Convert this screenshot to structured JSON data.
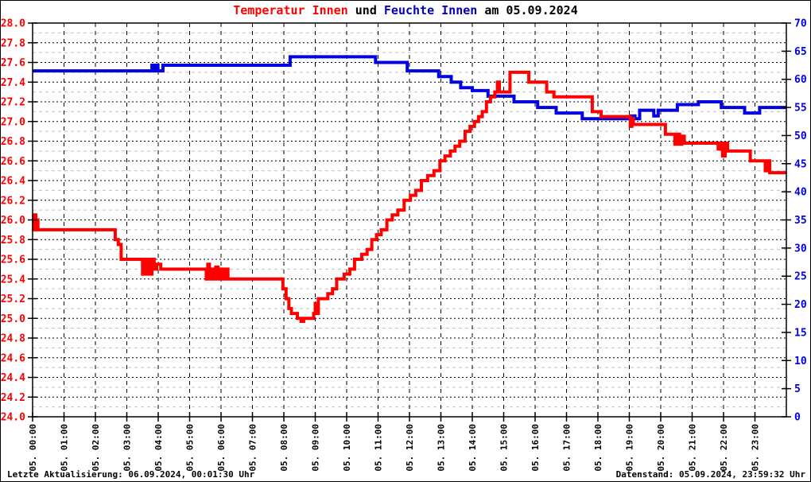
{
  "title": {
    "temperature_part": "Temperatur Innen",
    "conjunction": " und ",
    "humidity_part": "Feuchte Innen",
    "date_part": " am 05.09.2024"
  },
  "footer": {
    "last_update": "Letzte Aktualisierung: 06.09.2024, 00:01:30 Uhr",
    "data_timestamp": "Datenstand: 05.09.2024, 23:59:32 Uhr"
  },
  "colors": {
    "temperature": "#ff0000",
    "humidity": "#0000e0",
    "humidity_title": "#0000b4",
    "grid_major": "#000000",
    "grid_minor": "#c0c0c0",
    "axis_frame": "#000000",
    "background": "#ffffff"
  },
  "chart_data": {
    "type": "line",
    "title": "Temperatur Innen und Feuchte Innen am 05.09.2024",
    "grid": "on",
    "legend": "none",
    "x_labels": [
      "05. 00:00",
      "05. 01:00",
      "05. 02:00",
      "05. 03:00",
      "05. 04:00",
      "05. 05:00",
      "05. 06:00",
      "05. 07:00",
      "05. 08:00",
      "05. 09:00",
      "05. 10:00",
      "05. 11:00",
      "05. 12:00",
      "05. 13:00",
      "05. 14:00",
      "05. 15:00",
      "05. 16:00",
      "05. 17:00",
      "05. 18:00",
      "05. 19:00",
      "05. 20:00",
      "05. 21:00",
      "05. 22:00",
      "05. 23:00"
    ],
    "x_range_hours": [
      0,
      24
    ],
    "y_left": {
      "min": 24.0,
      "max": 28.0,
      "major_step": 0.2,
      "minor_step": 0.1,
      "tick_labels": [
        "24.0",
        "24.2",
        "24.4",
        "24.6",
        "24.8",
        "25.0",
        "25.2",
        "25.4",
        "25.6",
        "25.8",
        "26.0",
        "26.2",
        "26.4",
        "26.6",
        "26.8",
        "27.0",
        "27.2",
        "27.4",
        "27.6",
        "27.8",
        "28.0"
      ]
    },
    "y_right": {
      "min": 0,
      "max": 70,
      "major_step": 5,
      "tick_labels": [
        "0",
        "5",
        "10",
        "15",
        "20",
        "25",
        "30",
        "35",
        "40",
        "45",
        "50",
        "55",
        "60",
        "65",
        "70"
      ]
    },
    "series": [
      {
        "name": "Feuchte Innen",
        "axis": "right",
        "mode": "step-after",
        "points": [
          [
            0.0,
            61.5
          ],
          [
            3.8,
            62.5
          ],
          [
            3.86,
            61.5
          ],
          [
            3.93,
            62.5
          ],
          [
            3.99,
            61.5
          ],
          [
            4.15,
            62.5
          ],
          [
            8.2,
            64
          ],
          [
            10.92,
            63
          ],
          [
            11.93,
            61.5
          ],
          [
            12.93,
            60.5
          ],
          [
            13.33,
            59.5
          ],
          [
            13.63,
            58.5
          ],
          [
            14.0,
            58
          ],
          [
            14.5,
            57
          ],
          [
            15.33,
            56
          ],
          [
            16.08,
            55
          ],
          [
            16.67,
            54
          ],
          [
            17.5,
            53
          ],
          [
            19.05,
            53.5
          ],
          [
            19.18,
            53
          ],
          [
            19.33,
            54.5
          ],
          [
            19.78,
            53.5
          ],
          [
            19.92,
            54.5
          ],
          [
            20.53,
            55.5
          ],
          [
            21.2,
            56
          ],
          [
            21.93,
            55
          ],
          [
            22.67,
            54
          ],
          [
            23.15,
            55
          ]
        ]
      },
      {
        "name": "Temperatur Innen",
        "axis": "left",
        "mode": "step-after",
        "points": [
          [
            0.0,
            26.05
          ],
          [
            0.03,
            25.9
          ],
          [
            0.06,
            26.05
          ],
          [
            0.1,
            25.9
          ],
          [
            0.13,
            26.0
          ],
          [
            0.17,
            25.9
          ],
          [
            2.63,
            25.8
          ],
          [
            2.73,
            25.75
          ],
          [
            2.82,
            25.6
          ],
          [
            3.5,
            25.45
          ],
          [
            3.56,
            25.6
          ],
          [
            3.62,
            25.45
          ],
          [
            3.68,
            25.6
          ],
          [
            3.74,
            25.45
          ],
          [
            3.8,
            25.6
          ],
          [
            3.87,
            25.5
          ],
          [
            3.95,
            25.55
          ],
          [
            4.08,
            25.5
          ],
          [
            5.53,
            25.4
          ],
          [
            5.58,
            25.55
          ],
          [
            5.63,
            25.4
          ],
          [
            5.7,
            25.5
          ],
          [
            5.76,
            25.4
          ],
          [
            5.83,
            25.52
          ],
          [
            5.9,
            25.4
          ],
          [
            5.97,
            25.5
          ],
          [
            6.05,
            25.4
          ],
          [
            6.13,
            25.5
          ],
          [
            6.22,
            25.4
          ],
          [
            7.97,
            25.3
          ],
          [
            8.07,
            25.2
          ],
          [
            8.16,
            25.1
          ],
          [
            8.24,
            25.05
          ],
          [
            8.43,
            25.0
          ],
          [
            8.55,
            24.97
          ],
          [
            8.63,
            25.0
          ],
          [
            8.95,
            25.05
          ],
          [
            9.0,
            25.15
          ],
          [
            9.05,
            25.05
          ],
          [
            9.1,
            25.2
          ],
          [
            9.4,
            25.25
          ],
          [
            9.55,
            25.3
          ],
          [
            9.68,
            25.4
          ],
          [
            9.92,
            25.45
          ],
          [
            10.1,
            25.5
          ],
          [
            10.25,
            25.6
          ],
          [
            10.48,
            25.65
          ],
          [
            10.65,
            25.7
          ],
          [
            10.8,
            25.8
          ],
          [
            10.95,
            25.85
          ],
          [
            11.1,
            25.9
          ],
          [
            11.28,
            26.0
          ],
          [
            11.45,
            26.05
          ],
          [
            11.63,
            26.1
          ],
          [
            11.83,
            26.2
          ],
          [
            12.03,
            26.25
          ],
          [
            12.2,
            26.3
          ],
          [
            12.38,
            26.4
          ],
          [
            12.58,
            26.45
          ],
          [
            12.78,
            26.5
          ],
          [
            12.97,
            26.6
          ],
          [
            13.13,
            26.65
          ],
          [
            13.3,
            26.7
          ],
          [
            13.45,
            26.75
          ],
          [
            13.6,
            26.8
          ],
          [
            13.77,
            26.9
          ],
          [
            13.93,
            26.95
          ],
          [
            14.07,
            27.0
          ],
          [
            14.2,
            27.05
          ],
          [
            14.32,
            27.1
          ],
          [
            14.45,
            27.2
          ],
          [
            14.58,
            27.25
          ],
          [
            14.72,
            27.3
          ],
          [
            14.8,
            27.4
          ],
          [
            14.86,
            27.3
          ],
          [
            15.2,
            27.5
          ],
          [
            15.8,
            27.4
          ],
          [
            16.37,
            27.3
          ],
          [
            16.6,
            27.25
          ],
          [
            17.82,
            27.1
          ],
          [
            18.1,
            27.05
          ],
          [
            19.03,
            26.95
          ],
          [
            19.08,
            27.03
          ],
          [
            19.13,
            26.97
          ],
          [
            20.15,
            26.87
          ],
          [
            20.45,
            26.77
          ],
          [
            20.53,
            26.87
          ],
          [
            20.6,
            26.77
          ],
          [
            20.67,
            26.85
          ],
          [
            20.75,
            26.78
          ],
          [
            21.83,
            26.72
          ],
          [
            21.9,
            26.78
          ],
          [
            21.97,
            26.65
          ],
          [
            22.05,
            26.78
          ],
          [
            22.13,
            26.7
          ],
          [
            22.85,
            26.6
          ],
          [
            23.33,
            26.5
          ],
          [
            23.4,
            26.6
          ],
          [
            23.47,
            26.48
          ]
        ]
      }
    ]
  }
}
